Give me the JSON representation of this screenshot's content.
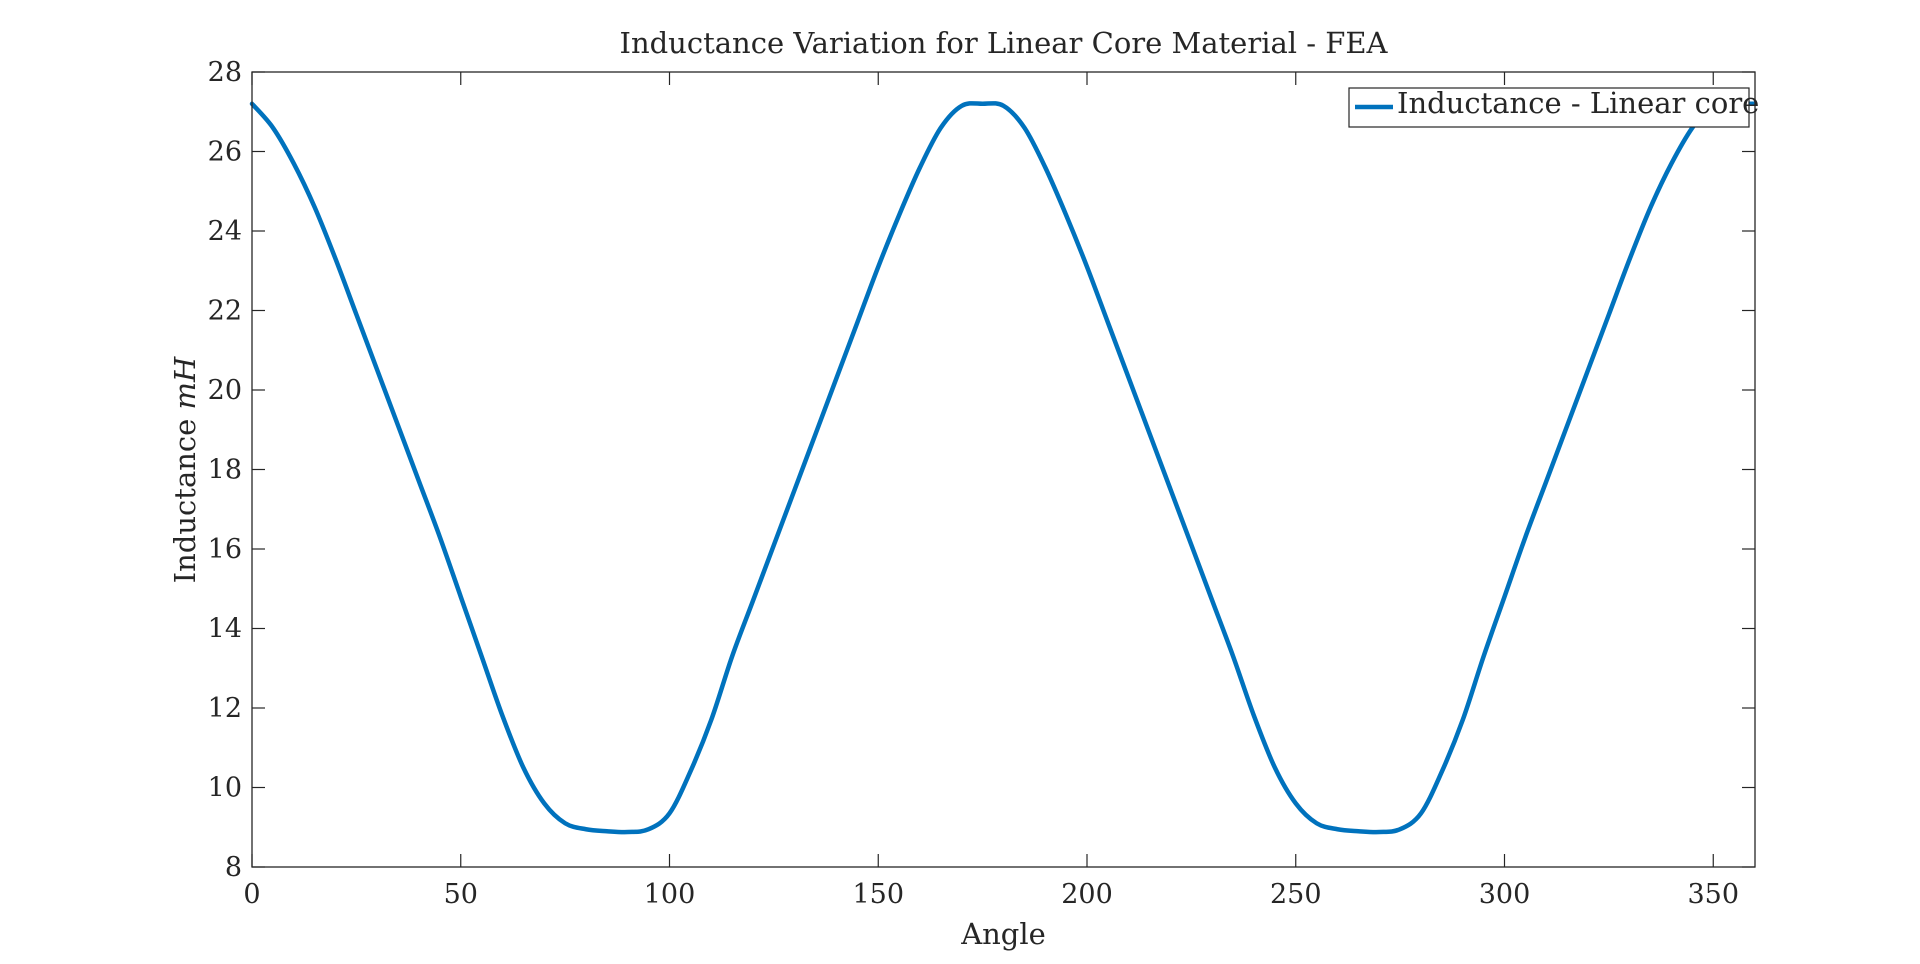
{
  "chart_data": {
    "type": "line",
    "title": "Inductance Variation for Linear Core Material - FEA",
    "xlabel": "Angle",
    "ylabel_text": "Inductance ",
    "ylabel_unit": "mH",
    "xlim": [
      0,
      360
    ],
    "ylim": [
      8,
      28
    ],
    "xticks": [
      0,
      50,
      100,
      150,
      200,
      250,
      300,
      350
    ],
    "yticks": [
      8,
      10,
      12,
      14,
      16,
      18,
      20,
      22,
      24,
      26,
      28
    ],
    "grid": false,
    "legend_position": "top-right",
    "colors": {
      "series": "#0072BD",
      "axes": "#262626",
      "background": "#ffffff"
    },
    "series": [
      {
        "name": "Inductance - Linear core",
        "x": [
          0,
          5,
          10,
          15,
          20,
          25,
          30,
          35,
          40,
          45,
          50,
          55,
          60,
          65,
          70,
          75,
          80,
          85,
          90,
          95,
          100,
          105,
          110,
          115,
          120,
          125,
          130,
          135,
          140,
          145,
          150,
          155,
          160,
          165,
          170,
          175,
          180,
          185,
          190,
          195,
          200,
          205,
          210,
          215,
          220,
          225,
          230,
          235,
          240,
          245,
          250,
          255,
          260,
          265,
          270,
          275,
          280,
          285,
          290,
          295,
          300,
          305,
          310,
          315,
          320,
          325,
          330,
          335,
          340,
          345,
          350,
          355,
          360
        ],
        "values": [
          27.2,
          26.6,
          25.7,
          24.6,
          23.3,
          21.9,
          20.5,
          19.1,
          17.7,
          16.3,
          14.8,
          13.3,
          11.8,
          10.5,
          9.6,
          9.1,
          8.95,
          8.9,
          8.88,
          8.95,
          9.35,
          10.4,
          11.7,
          13.3,
          14.7,
          16.1,
          17.5,
          18.9,
          20.3,
          21.7,
          23.1,
          24.4,
          25.6,
          26.6,
          27.15,
          27.2,
          27.15,
          26.6,
          25.6,
          24.4,
          23.1,
          21.7,
          20.3,
          18.9,
          17.5,
          16.1,
          14.7,
          13.3,
          11.8,
          10.5,
          9.6,
          9.1,
          8.95,
          8.9,
          8.88,
          8.95,
          9.35,
          10.4,
          11.7,
          13.3,
          14.8,
          16.3,
          17.7,
          19.1,
          20.5,
          21.9,
          23.3,
          24.6,
          25.7,
          26.6,
          27.2,
          27.2,
          27.2
        ]
      }
    ]
  }
}
